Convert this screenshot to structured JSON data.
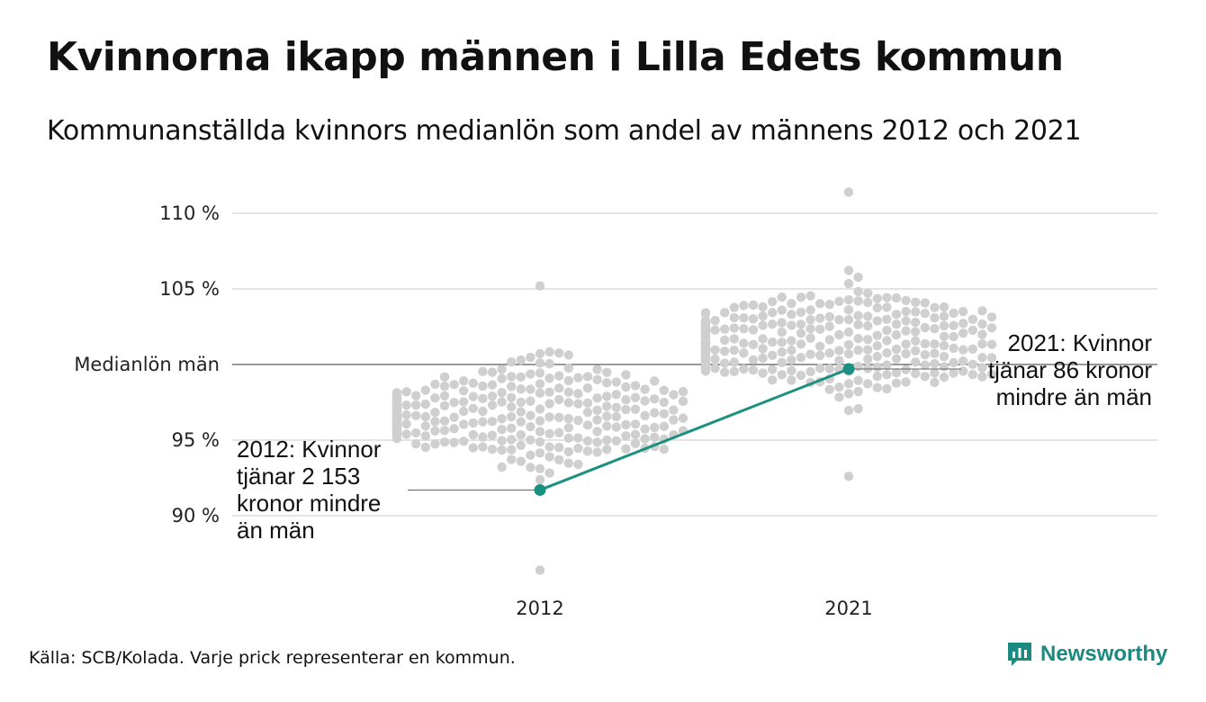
{
  "header": {
    "title": "Kvinnorna ikapp männen i Lilla Edets kommun",
    "subtitle": "Kommunanställda kvinnors medianlön som andel av männens 2012 och 2021"
  },
  "chart_data": {
    "type": "scatter",
    "subtype": "beeswarm-with-highlight-line",
    "categories": [
      "2012",
      "2021"
    ],
    "y_ticks": [
      {
        "value": 110,
        "label": "110 %"
      },
      {
        "value": 105,
        "label": "105 %"
      },
      {
        "value": 100,
        "label": "Medianlön män"
      },
      {
        "value": 95,
        "label": "95 %"
      },
      {
        "value": 90,
        "label": "90 %"
      }
    ],
    "ylim": [
      86.4,
      111.8
    ],
    "reference_line": {
      "value": 100,
      "label": "Medianlön män"
    },
    "distribution_summary": [
      {
        "category": "2012",
        "min": 86.4,
        "max": 105.2,
        "center": 97.0
      },
      {
        "category": "2021",
        "min": 92.6,
        "max": 111.4,
        "center": 101.5
      }
    ],
    "highlight": {
      "name": "Lilla Edets kommun",
      "color": "#1a9080",
      "points": [
        {
          "x": "2012",
          "y": 91.7
        },
        {
          "x": "2021",
          "y": 99.7
        }
      ]
    },
    "annotations": [
      {
        "x": "2012",
        "text": "2012: Kvinnor tjänar 2 153 kronor mindre än män"
      },
      {
        "x": "2021",
        "text": "2021: Kvinnor tjänar 86 kronor mindre än män"
      }
    ],
    "grid": true,
    "dot_color": "#cfcfcf"
  },
  "annotations": {
    "a2012": [
      "2012: Kvinnor",
      "tjänar 2 153",
      "kronor mindre",
      "än män"
    ],
    "a2021": [
      "2021: Kvinnor",
      "tjänar 86 kronor",
      "mindre än män"
    ]
  },
  "footer": {
    "source": "Källa: SCB/Kolada. Varje prick representerar en kommun.",
    "brand": "Newsworthy",
    "brand_color": "#1a8a80",
    "brand_icon": "newsworthy-logo-icon"
  }
}
